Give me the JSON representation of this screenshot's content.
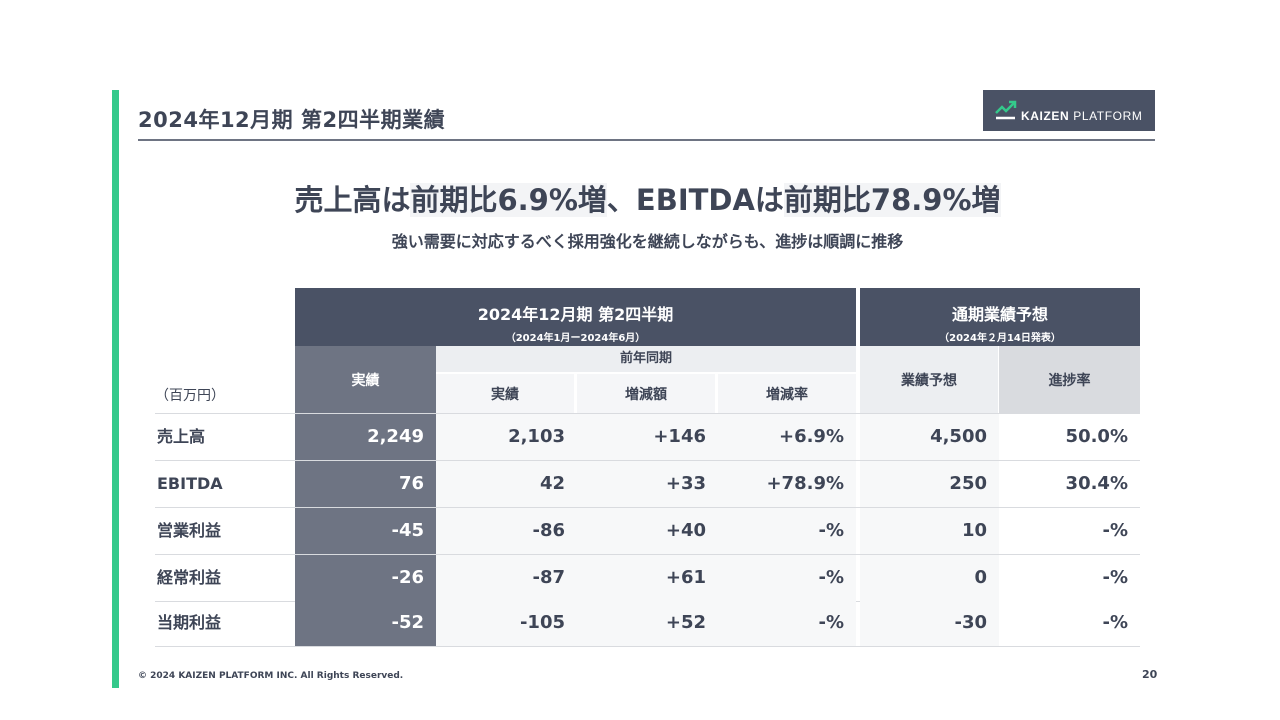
{
  "slide": {
    "title": "2024年12月期 第2四半期業績",
    "logo_text_bold": "KAIZEN",
    "logo_text_rest": " PLATFORM",
    "headline": {
      "part1": "売上高は",
      "part2": "前期比6.9%増",
      "part3": "、EBITDAは",
      "part4": "前期比78.9%増"
    },
    "subhead": "強い需要に対応するべく採用強化を継続しながらも、進捗は順調に推移",
    "footer": "© 2024 KAIZEN PLATFORM INC. All Rights Reserved.",
    "page_number": "20",
    "accent_color": "#34c98b",
    "header_color": "#4a5265"
  },
  "table": {
    "unit": "（百万円）",
    "header_main_title": "2024年12月期 第2四半期",
    "header_main_sub": "（2024年1月ー2024年6月）",
    "header_fore_title": "通期業績予想",
    "header_fore_sub": "（2024年２月14日発表）",
    "col_actual": "実績",
    "col_prev_group": "前年同期",
    "col_prev_actual": "実績",
    "col_diff": "増減額",
    "col_rate": "増減率",
    "col_forecast": "業績予想",
    "col_progress": "進捗率",
    "rows": [
      {
        "label": "売上高",
        "actual": "2,249",
        "prev": "2,103",
        "diff": "+146",
        "rate": "+6.9%",
        "forecast": "4,500",
        "progress": "50.0%"
      },
      {
        "label": "EBITDA",
        "actual": "76",
        "prev": "42",
        "diff": "+33",
        "rate": "+78.9%",
        "forecast": "250",
        "progress": "30.4%"
      },
      {
        "label": "営業利益",
        "actual": "-45",
        "prev": "-86",
        "diff": "+40",
        "rate": "-%",
        "forecast": "10",
        "progress": "-%"
      },
      {
        "label": "経常利益",
        "actual": "-26",
        "prev": "-87",
        "diff": "+61",
        "rate": "-%",
        "forecast": "0",
        "progress": "-%"
      },
      {
        "label": "当期利益",
        "actual": "-52",
        "prev": "-105",
        "diff": "+52",
        "rate": "-%",
        "forecast": "-30",
        "progress": "-%"
      }
    ]
  }
}
